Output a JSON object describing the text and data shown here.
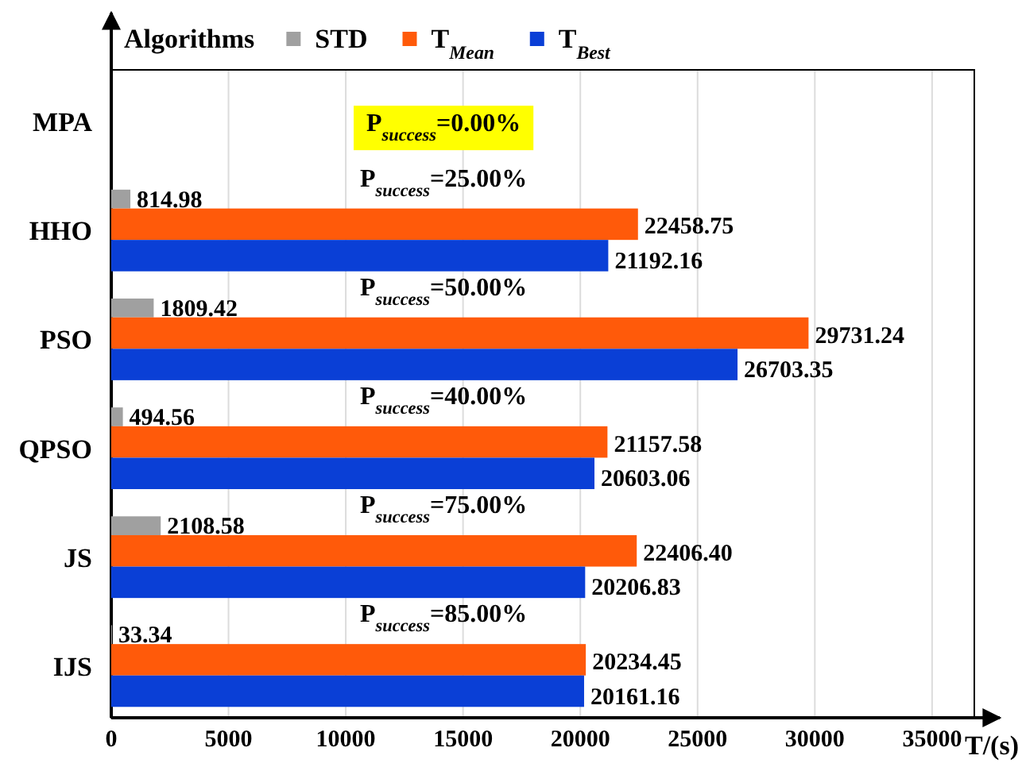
{
  "chart_data": {
    "type": "bar",
    "orientation": "horizontal",
    "legend_title": "Algorithms",
    "legend": "top left",
    "xlabel": "T/(s)",
    "categories": [
      "MPA",
      "HHO",
      "PSO",
      "QPSO",
      "JS",
      "IJS"
    ],
    "series": [
      {
        "name": "STD",
        "color": "#a0a0a0",
        "values": [
          null,
          814.98,
          1809.42,
          494.56,
          2108.58,
          33.34
        ],
        "value_labels": [
          null,
          "814.98",
          "1809.42",
          "494.56",
          "2108.58",
          "33.34"
        ]
      },
      {
        "name": "T$_{Mean}$",
        "color": "#ff5a0a",
        "values": [
          null,
          22458.75,
          29731.24,
          21157.58,
          22406.4,
          20234.45
        ],
        "value_labels": [
          null,
          "22458.75",
          "29731.24",
          "21157.58",
          "22406.40",
          "20234.45"
        ]
      },
      {
        "name": "T$_{Best}$",
        "color": "#0a3fd6",
        "values": [
          null,
          21192.16,
          26703.35,
          20603.06,
          20206.83,
          20161.16
        ],
        "value_labels": [
          null,
          "21192.16",
          "26703.35",
          "20603.06",
          "20206.83",
          "20161.16"
        ]
      }
    ],
    "xlim": [
      0,
      36800
    ],
    "xticks": [
      0,
      5000,
      10000,
      15000,
      20000,
      25000,
      30000,
      35000
    ],
    "grid": "x",
    "annotations": [
      "P$_{success}$=0.00%",
      "P$_{success}$=25.00%",
      "P$_{success}$=50.00%",
      "P$_{success}$=40.00%",
      "P$_{success}$=75.00%",
      "P$_{success}$=85.00%"
    ]
  }
}
